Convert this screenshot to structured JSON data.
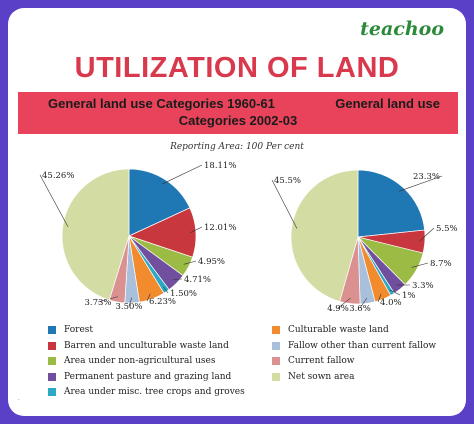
{
  "brand": "teachoo",
  "title": "UTILIZATION OF LAND",
  "banner": {
    "left": "General land use Categories 1960-61",
    "right": "General land use",
    "second_line": "Categories 2002-03"
  },
  "reporting_area": "Reporting Area: 100 Per cent",
  "chart_data": [
    {
      "type": "pie",
      "title": "General land use Categories 1960-61",
      "categories": [
        "Forest",
        "Barren and unculturable waste land",
        "Area under non-agricultural uses",
        "Permanent pasture and grazing land",
        "Area under misc. tree crops and groves",
        "Culturable waste land",
        "Fallow other than current fallow",
        "Current fallow",
        "Net sown area"
      ],
      "values": [
        18.11,
        12.01,
        4.95,
        4.71,
        1.5,
        6.23,
        3.5,
        3.73,
        45.26
      ],
      "labels": [
        "18.11%",
        "12.01%",
        "4.95%",
        "4.71%",
        "1.50%",
        "6.23%",
        "3.50%",
        "3.73%",
        "45.26%"
      ]
    },
    {
      "type": "pie",
      "title": "General land use Categories 2002-03",
      "categories": [
        "Forest",
        "Barren and unculturable waste land",
        "Area under non-agricultural uses",
        "Permanent pasture and grazing land",
        "Area under misc. tree crops and groves",
        "Culturable waste land",
        "Fallow other than current fallow",
        "Current fallow",
        "Net sown area"
      ],
      "values": [
        23.3,
        5.5,
        8.7,
        3.3,
        1.0,
        4.0,
        3.6,
        4.9,
        45.5
      ],
      "labels": [
        "23.3%",
        "5.5%",
        "8.7%",
        "3.3%",
        "1%",
        "4.0%",
        "3.6%",
        "4.9%",
        "45.5%"
      ]
    }
  ],
  "colors": [
    "#1f77b4",
    "#c8373e",
    "#9bbb44",
    "#6f4f9e",
    "#2aa8c4",
    "#f28a2e",
    "#a8c0dc",
    "#dc9191",
    "#d3dca3"
  ],
  "legend": [
    {
      "label": "Forest",
      "color": "#1f77b4"
    },
    {
      "label": "Barren and unculturable waste land",
      "color": "#c8373e"
    },
    {
      "label": "Area under non-agricultural uses",
      "color": "#9bbb44"
    },
    {
      "label": "Permanent pasture and grazing land",
      "color": "#6f4f9e"
    },
    {
      "label": "Area under misc. tree crops and groves",
      "color": "#2aa8c4"
    },
    {
      "label": "Culturable waste land",
      "color": "#f28a2e"
    },
    {
      "label": "Fallow other than current fallow",
      "color": "#a8c0dc"
    },
    {
      "label": "Current fallow",
      "color": "#dc9191"
    },
    {
      "label": "Net sown area",
      "color": "#d3dca3"
    }
  ]
}
